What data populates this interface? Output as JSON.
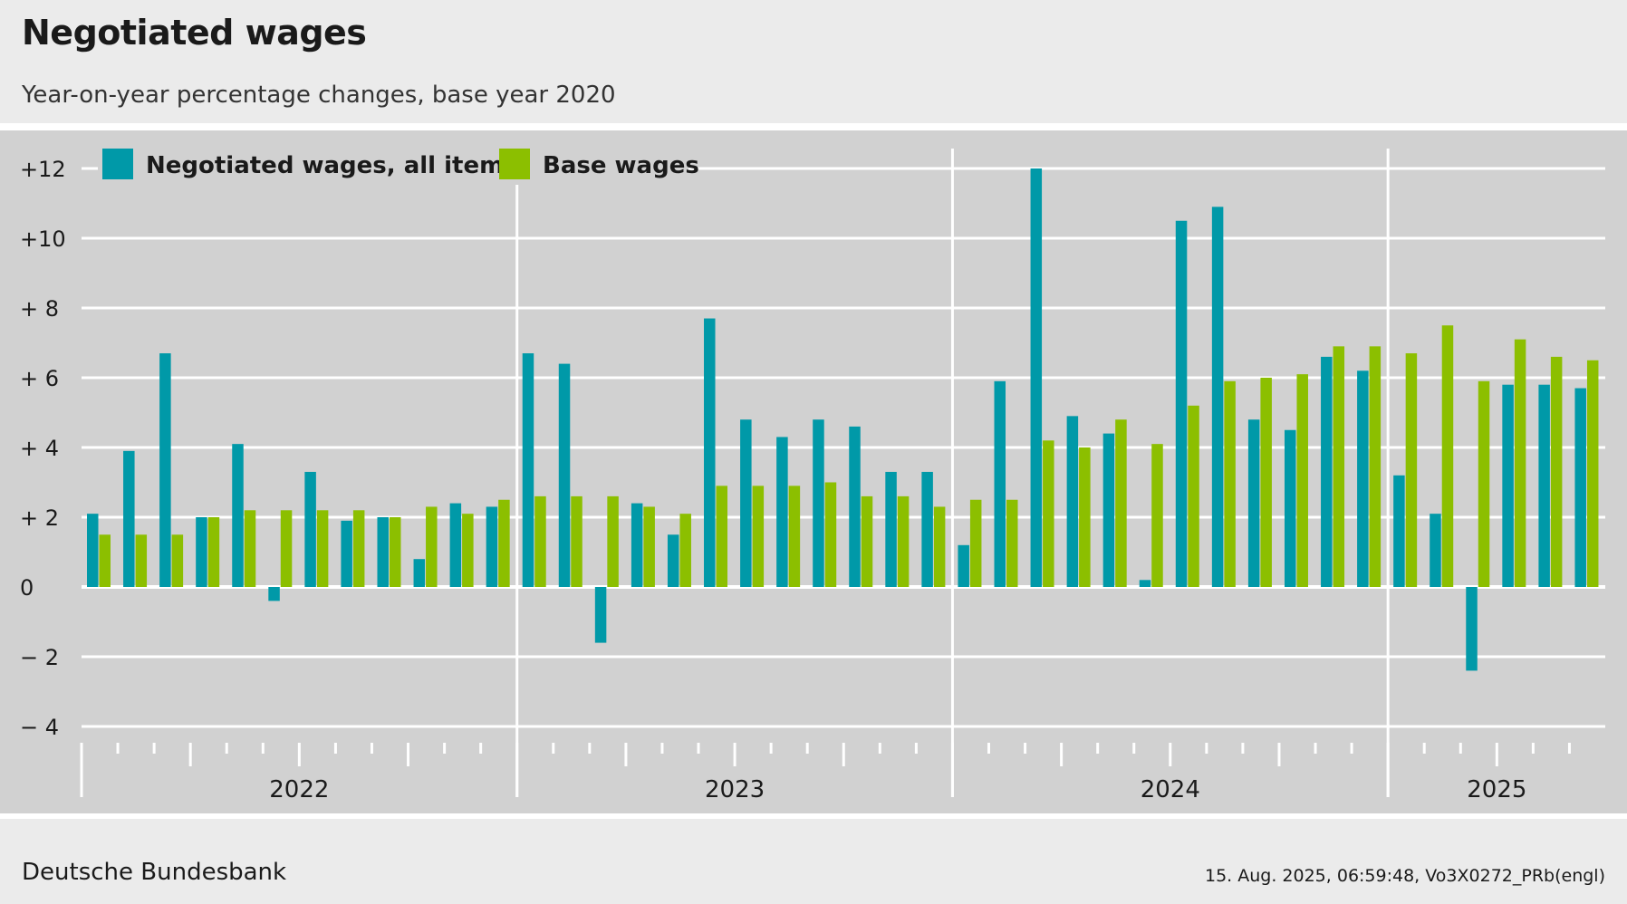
{
  "header": {
    "title": "Negotiated wages",
    "subtitle": "Year-on-year percentage changes, base year 2020"
  },
  "footer": {
    "source": "Deutsche Bundesbank",
    "stamp": "15. Aug. 2025, 06:59:48, Vo3X0272_PRb(engl)"
  },
  "chart_data": {
    "type": "bar",
    "title": "Negotiated wages",
    "subtitle": "Year-on-year percentage changes, base year 2020",
    "categories": [
      "2022-01",
      "2022-02",
      "2022-03",
      "2022-04",
      "2022-05",
      "2022-06",
      "2022-07",
      "2022-08",
      "2022-09",
      "2022-10",
      "2022-11",
      "2022-12",
      "2023-01",
      "2023-02",
      "2023-03",
      "2023-04",
      "2023-05",
      "2023-06",
      "2023-07",
      "2023-08",
      "2023-09",
      "2023-10",
      "2023-11",
      "2023-12",
      "2024-01",
      "2024-02",
      "2024-03",
      "2024-04",
      "2024-05",
      "2024-06",
      "2024-07",
      "2024-08",
      "2024-09",
      "2024-10",
      "2024-11",
      "2024-12",
      "2025-01",
      "2025-02",
      "2025-03",
      "2025-04",
      "2025-05",
      "2025-06"
    ],
    "years": [
      "2022",
      "2023",
      "2024",
      "2025"
    ],
    "series": [
      {
        "name": "Negotiated wages, all items",
        "color": "#0099a8",
        "values": [
          2.1,
          3.9,
          6.7,
          2.0,
          4.1,
          -0.4,
          3.3,
          1.9,
          2.0,
          0.8,
          2.4,
          2.3,
          6.7,
          6.4,
          -1.6,
          2.4,
          1.5,
          7.7,
          4.8,
          4.3,
          4.8,
          4.6,
          3.3,
          3.3,
          1.2,
          5.9,
          12.0,
          4.9,
          4.4,
          0.2,
          10.5,
          10.9,
          4.8,
          4.5,
          6.6,
          6.2,
          3.2,
          2.1,
          -2.4,
          5.8,
          5.8,
          5.7
        ]
      },
      {
        "name": "Base wages",
        "color": "#8cbf00",
        "values": [
          1.5,
          1.5,
          1.5,
          2.0,
          2.2,
          2.2,
          2.2,
          2.2,
          2.0,
          2.3,
          2.1,
          2.5,
          2.6,
          2.6,
          2.6,
          2.3,
          2.1,
          2.9,
          2.9,
          2.9,
          3.0,
          2.6,
          2.6,
          2.3,
          2.5,
          2.5,
          4.2,
          4.0,
          4.8,
          4.1,
          5.2,
          5.9,
          6.0,
          6.1,
          6.9,
          6.9,
          6.7,
          7.5,
          5.9,
          7.1,
          6.6,
          6.5
        ]
      }
    ],
    "y_ticks": [
      {
        "value": 12,
        "label": "+12"
      },
      {
        "value": 10,
        "label": "+10"
      },
      {
        "value": 8,
        "label": "+  8"
      },
      {
        "value": 6,
        "label": "+  6"
      },
      {
        "value": 4,
        "label": "+  4"
      },
      {
        "value": 2,
        "label": "+  2"
      },
      {
        "value": 0,
        "label": "0"
      },
      {
        "value": -2,
        "label": "−  2"
      },
      {
        "value": -4,
        "label": "−  4"
      }
    ],
    "ylim": [
      -4,
      12.5
    ],
    "grid": true,
    "legend_position": "top-left"
  }
}
